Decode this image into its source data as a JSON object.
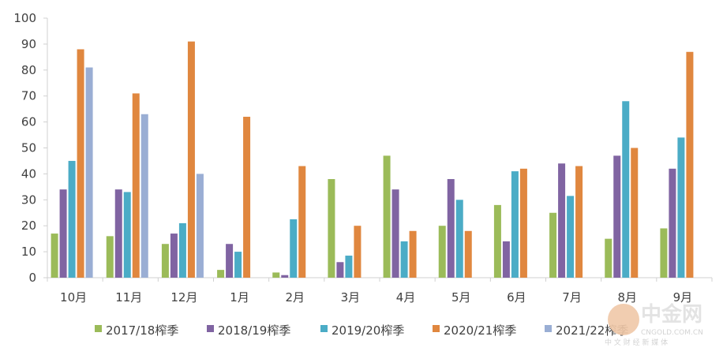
{
  "chart_data": {
    "type": "bar",
    "categories": [
      "10月",
      "11月",
      "12月",
      "1月",
      "2月",
      "3月",
      "4月",
      "5月",
      "6月",
      "7月",
      "8月",
      "9月"
    ],
    "series": [
      {
        "name": "2017/18榨季",
        "color": "#9bbb59",
        "values": [
          17,
          16,
          13,
          3,
          2,
          38,
          47,
          20,
          28,
          25,
          15,
          19
        ]
      },
      {
        "name": "2018/19榨季",
        "color": "#8064a2",
        "values": [
          34,
          34,
          17,
          13,
          1,
          6,
          34,
          38,
          14,
          44,
          47,
          42
        ]
      },
      {
        "name": "2019/20榨季",
        "color": "#4bacc6",
        "values": [
          45,
          33,
          21,
          10,
          22.5,
          8.5,
          14,
          30,
          41,
          31.5,
          68,
          54
        ]
      },
      {
        "name": "2020/21榨季",
        "color": "#e0873f",
        "values": [
          88,
          71,
          91,
          62,
          43,
          20,
          18,
          18,
          42,
          43,
          50,
          87
        ]
      },
      {
        "name": "2021/22榨季",
        "color": "#9aaed4",
        "values": [
          81,
          63,
          40,
          null,
          null,
          null,
          null,
          null,
          null,
          null,
          null,
          null
        ]
      }
    ],
    "ylim": [
      0,
      100
    ],
    "yticks": [
      0,
      10,
      20,
      30,
      40,
      50,
      60,
      70,
      80,
      90,
      100
    ],
    "title": "",
    "xlabel": "",
    "ylabel": "",
    "legend_position": "bottom",
    "grid": false
  },
  "watermark": {
    "logo_text": "中金网",
    "site": "CNGOLD.COM.CN",
    "subtitle": "中 文 财 经 新 媒 体"
  }
}
